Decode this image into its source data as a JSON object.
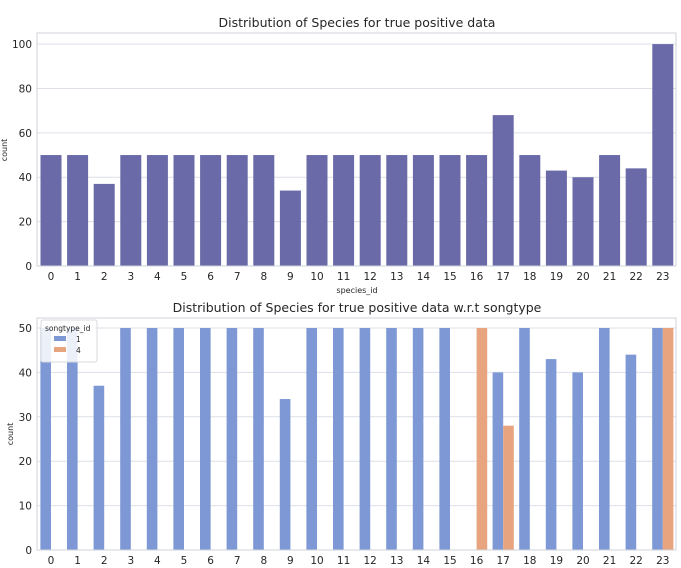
{
  "chart_data": [
    {
      "type": "bar",
      "title": "Distribution of Species for true positive data",
      "xlabel": "species_id",
      "ylabel": "count",
      "ylim": [
        0,
        105
      ],
      "yticks": [
        0,
        20,
        40,
        60,
        80,
        100
      ],
      "grid": true,
      "color": "#6a6aa8",
      "categories": [
        "0",
        "1",
        "2",
        "3",
        "4",
        "5",
        "6",
        "7",
        "8",
        "9",
        "10",
        "11",
        "12",
        "13",
        "14",
        "15",
        "16",
        "17",
        "18",
        "19",
        "20",
        "21",
        "22",
        "23"
      ],
      "values": [
        50,
        50,
        37,
        50,
        50,
        50,
        50,
        50,
        50,
        34,
        50,
        50,
        50,
        50,
        50,
        50,
        50,
        68,
        50,
        43,
        40,
        50,
        44,
        100
      ]
    },
    {
      "type": "bar",
      "title": "Distribution of Species for true positive data w.r.t songtype",
      "xlabel": "",
      "ylabel": "count",
      "ylim": [
        0,
        50
      ],
      "yticks": [
        0,
        10,
        20,
        30,
        40,
        50
      ],
      "grid": true,
      "legend": {
        "title": "songtype_id",
        "position": "top-left"
      },
      "categories": [
        "0",
        "1",
        "2",
        "3",
        "4",
        "5",
        "6",
        "7",
        "8",
        "9",
        "10",
        "11",
        "12",
        "13",
        "14",
        "15",
        "16",
        "17",
        "18",
        "19",
        "20",
        "21",
        "22",
        "23"
      ],
      "series": [
        {
          "name": "1",
          "color": "#7d98d4",
          "values": [
            50,
            50,
            37,
            50,
            50,
            50,
            50,
            50,
            50,
            34,
            50,
            50,
            50,
            50,
            50,
            50,
            null,
            40,
            50,
            43,
            40,
            50,
            44,
            50
          ]
        },
        {
          "name": "4",
          "color": "#e8a47e",
          "values": [
            null,
            null,
            null,
            null,
            null,
            null,
            null,
            null,
            null,
            null,
            null,
            null,
            null,
            null,
            null,
            null,
            50,
            28,
            null,
            null,
            null,
            null,
            null,
            50
          ]
        }
      ]
    }
  ]
}
